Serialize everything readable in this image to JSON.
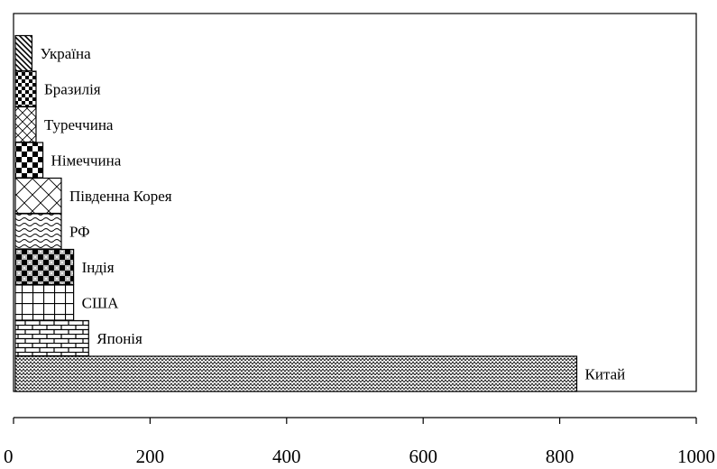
{
  "chart_data": {
    "type": "bar",
    "orientation": "horizontal",
    "title": "",
    "xlabel": "",
    "ylabel": "",
    "xlim": [
      0,
      1000
    ],
    "xticks": [
      0,
      200,
      400,
      600,
      800,
      1000
    ],
    "grid": false,
    "legend": "none",
    "categories": [
      "Китай",
      "Японія",
      "США",
      "Індія",
      "РФ",
      "Південна Корея",
      "Німеччина",
      "Туреччина",
      "Бразилія",
      "Україна"
    ],
    "values": [
      825,
      110,
      88,
      88,
      70,
      70,
      43,
      33,
      33,
      27
    ],
    "patterns": [
      "zigzag-fine",
      "bricks",
      "grid",
      "checker-dots",
      "waves",
      "diagonal-cross",
      "checker",
      "diag-grid",
      "checker-small",
      "diagonal"
    ]
  }
}
